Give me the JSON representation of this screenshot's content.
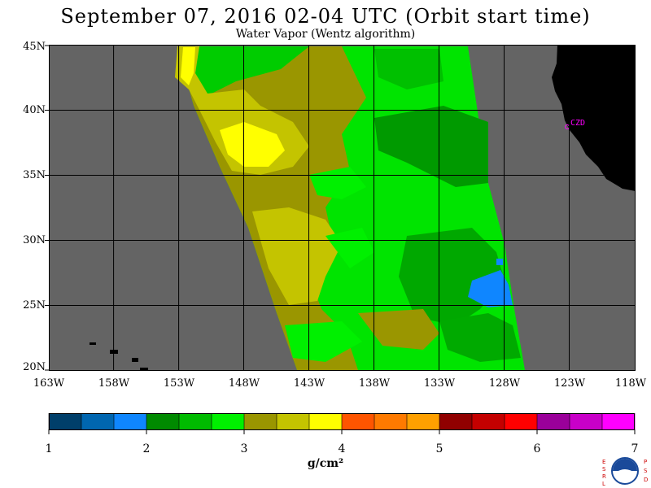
{
  "title": "September 07, 2016  02-04 UTC  (Orbit start time)",
  "subtitle": "Water Vapor (Wentz algorithm)",
  "lat_labels": [
    "45N",
    "40N",
    "35N",
    "30N",
    "25N",
    "20N"
  ],
  "lon_labels": [
    "163W",
    "158W",
    "153W",
    "148W",
    "143W",
    "138W",
    "133W",
    "128W",
    "123W",
    "118W"
  ],
  "station_label": "CZD",
  "colorbar": {
    "ticks": [
      "1",
      "2",
      "3",
      "4",
      "5",
      "6",
      "7"
    ],
    "units": "g/cm²",
    "range": [
      1,
      7
    ],
    "colors": [
      "#003f6a",
      "#0066b0",
      "#0f86ff",
      "#008a00",
      "#00bb00",
      "#00f000",
      "#9a9600",
      "#c4c400",
      "#ffff00",
      "#ff5500",
      "#ff7a00",
      "#ffa000",
      "#900000",
      "#c40000",
      "#ff0000",
      "#9a009a",
      "#c800c8",
      "#ff00ff"
    ]
  },
  "map": {
    "lon_range": [
      -163,
      -118
    ],
    "lat_range": [
      20,
      45
    ],
    "no_data_color": "#646464",
    "land_color": "#000000",
    "grid_color": "#000000"
  },
  "logo_letters": [
    "E",
    "S",
    "R",
    "L",
    "P",
    "S",
    "D"
  ]
}
